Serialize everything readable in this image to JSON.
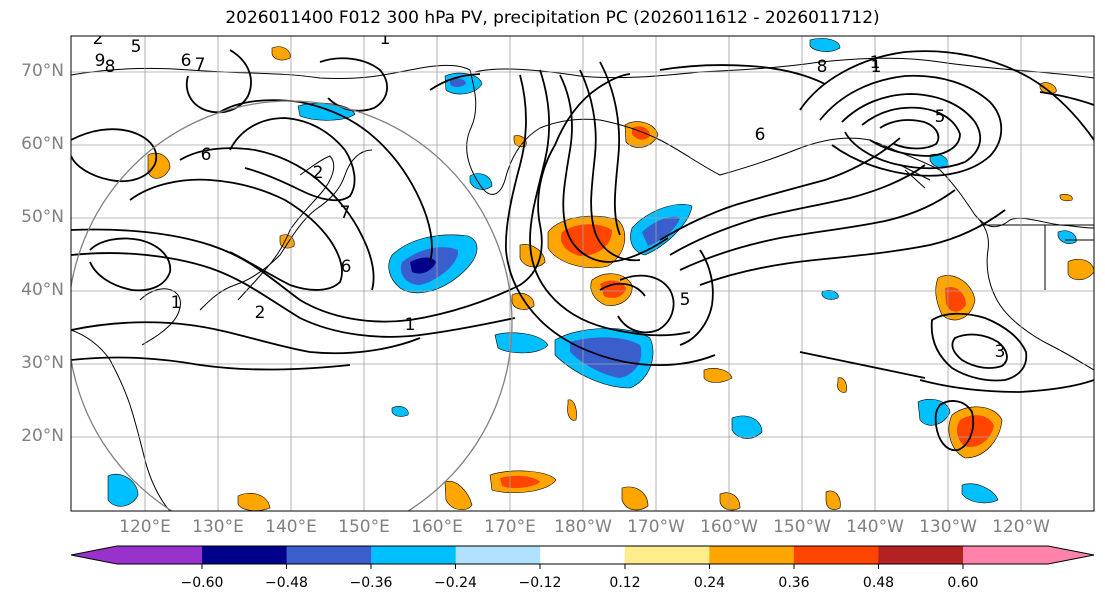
{
  "title": "2026011400 F012 300 hPa PV, precipitation PC (2026011612 - 2026011712)",
  "lat_labels": [
    "70°N",
    "60°N",
    "50°N",
    "40°N",
    "30°N",
    "20°N"
  ],
  "lon_labels": [
    "120°E",
    "130°E",
    "140°E",
    "150°E",
    "160°E",
    "170°E",
    "180°W",
    "170°W",
    "160°W",
    "150°W",
    "140°W",
    "130°W",
    "120°W"
  ],
  "colorbar": {
    "ticks": [
      "−0.60",
      "−0.48",
      "−0.36",
      "−0.24",
      "−0.12",
      "0.12",
      "0.24",
      "0.36",
      "0.48",
      "0.60"
    ],
    "colors": {
      "under": "#9932cc",
      "bin1": "#00008b",
      "bin2": "#3a5fcd",
      "bin3": "#00bfff",
      "bin4": "#b0e2ff",
      "neutral": "#ffffff",
      "bin6": "#ffec8b",
      "bin7": "#ffa500",
      "bin8": "#ff4500",
      "bin9": "#b22222",
      "over": "#ff82ab"
    }
  },
  "contour_labels": [
    "1",
    "2",
    "5",
    "6",
    "7",
    "8",
    "9",
    "1",
    "2",
    "6",
    "7",
    "6",
    "1",
    "5",
    "6",
    "8",
    "1",
    "3",
    "2",
    "5",
    "1"
  ]
}
